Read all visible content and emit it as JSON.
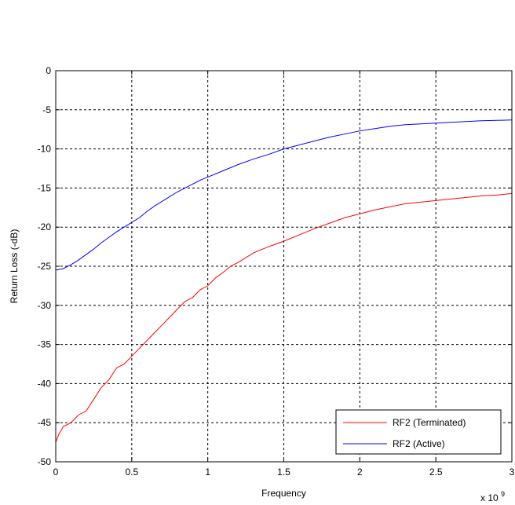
{
  "chart_data": {
    "type": "line",
    "title": "",
    "xlabel": "Frequency",
    "ylabel": "Return Loss (-dB)",
    "x_multiplier_label": {
      "prefix": "x 10",
      "exponent": "9"
    },
    "xlim": [
      0,
      3
    ],
    "ylim": [
      -50,
      0
    ],
    "xticks": [
      0,
      0.5,
      1,
      1.5,
      2,
      2.5,
      3
    ],
    "xtick_labels": [
      "0",
      "0.5",
      "1",
      "1.5",
      "2",
      "2.5",
      "3"
    ],
    "yticks": [
      0,
      -5,
      -10,
      -15,
      -20,
      -25,
      -30,
      -35,
      -40,
      -45,
      -50
    ],
    "ytick_labels": [
      "0",
      "-5",
      "-10",
      "-15",
      "-20",
      "-25",
      "-30",
      "-35",
      "-40",
      "-45",
      "-50"
    ],
    "grid": true,
    "legend_position": "bottom-right",
    "series": [
      {
        "name": "RF2 (Terminated)",
        "color": "#ff0000",
        "x": [
          0,
          0.02,
          0.05,
          0.1,
          0.15,
          0.2,
          0.25,
          0.3,
          0.35,
          0.4,
          0.45,
          0.5,
          0.55,
          0.6,
          0.65,
          0.7,
          0.75,
          0.8,
          0.85,
          0.9,
          0.95,
          1.0,
          1.05,
          1.1,
          1.15,
          1.2,
          1.3,
          1.4,
          1.5,
          1.6,
          1.7,
          1.8,
          1.9,
          2.0,
          2.1,
          2.2,
          2.3,
          2.4,
          2.5,
          2.6,
          2.7,
          2.8,
          2.9,
          3.0
        ],
        "y": [
          -47.5,
          -46.5,
          -45.5,
          -45.0,
          -44.0,
          -43.5,
          -42.0,
          -40.5,
          -39.5,
          -38.0,
          -37.5,
          -36.5,
          -35.5,
          -34.5,
          -33.5,
          -32.5,
          -31.5,
          -30.5,
          -29.5,
          -29.0,
          -28.0,
          -27.5,
          -26.5,
          -25.8,
          -25.0,
          -24.5,
          -23.3,
          -22.5,
          -21.8,
          -21.0,
          -20.2,
          -19.5,
          -18.8,
          -18.3,
          -17.8,
          -17.4,
          -17.0,
          -16.8,
          -16.6,
          -16.4,
          -16.2,
          -16.0,
          -15.9,
          -15.7
        ]
      },
      {
        "name": "RF2 (Active)",
        "color": "#0000ff",
        "x": [
          0,
          0.05,
          0.1,
          0.15,
          0.2,
          0.25,
          0.3,
          0.35,
          0.4,
          0.45,
          0.5,
          0.55,
          0.6,
          0.65,
          0.7,
          0.75,
          0.8,
          0.85,
          0.9,
          0.95,
          1.0,
          1.1,
          1.2,
          1.3,
          1.4,
          1.5,
          1.6,
          1.7,
          1.8,
          1.9,
          2.0,
          2.1,
          2.2,
          2.3,
          2.4,
          2.5,
          2.6,
          2.7,
          2.8,
          2.9,
          3.0
        ],
        "y": [
          -25.5,
          -25.3,
          -24.8,
          -24.2,
          -23.5,
          -22.8,
          -22.0,
          -21.3,
          -20.6,
          -20.0,
          -19.4,
          -18.8,
          -18.0,
          -17.3,
          -16.7,
          -16.1,
          -15.5,
          -15.0,
          -14.5,
          -14.0,
          -13.6,
          -12.8,
          -12.0,
          -11.3,
          -10.7,
          -10.0,
          -9.5,
          -9.0,
          -8.5,
          -8.1,
          -7.7,
          -7.4,
          -7.1,
          -6.9,
          -6.8,
          -6.7,
          -6.6,
          -6.5,
          -6.4,
          -6.35,
          -6.3
        ]
      }
    ]
  }
}
